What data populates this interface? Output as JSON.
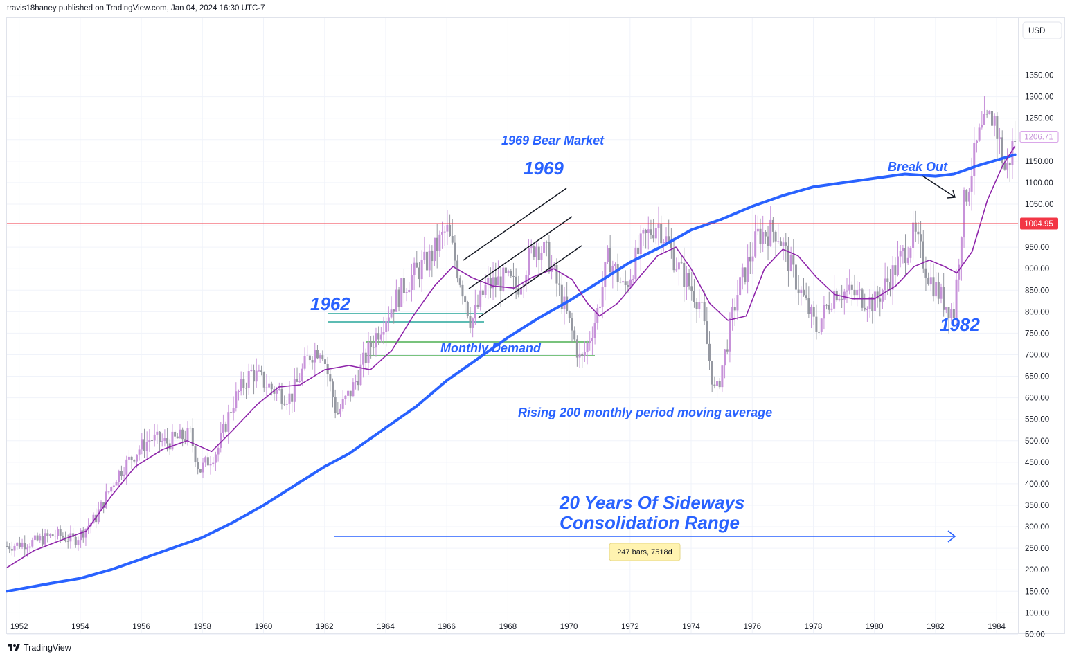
{
  "header": {
    "byline": "travis18haney published on TradingView.com, Jan 04, 2024 16:30 UTC-7"
  },
  "footer": {
    "brand": "TradingView"
  },
  "currency_button": "USD",
  "last_price_label": "1206.71",
  "level_label": "1004.95",
  "annotations": {
    "bear_market": "1969 Bear Market",
    "y1969": "1969",
    "y1962": "1962",
    "monthly_demand": "Monthly Demand",
    "rising_ma": "Rising 200 monthly period moving average",
    "break_out": "Break Out",
    "y1982": "1982",
    "sideways_line1": "20 Years Of Sideways",
    "sideways_line2": "Consolidation Range",
    "measure": "247 bars, 7518d"
  },
  "colors": {
    "candle": "#c792d9",
    "ma_short": "#8e24aa",
    "ma_long": "#2962ff",
    "annotation": "#2962ff",
    "level_line": "#f23645",
    "demand_teal": "#26a69a",
    "demand_green": "#4caf50"
  },
  "chart_data": {
    "type": "candlestick",
    "title": "",
    "xlabel": "",
    "ylabel": "",
    "x_ticks": [
      "1952",
      "1954",
      "1956",
      "1958",
      "1960",
      "1962",
      "1964",
      "1966",
      "1968",
      "1970",
      "1972",
      "1974",
      "1976",
      "1978",
      "1980",
      "1982",
      "1984"
    ],
    "y_ticks": [
      "50.00",
      "100.00",
      "150.00",
      "200.00",
      "250.00",
      "300.00",
      "350.00",
      "400.00",
      "450.00",
      "500.00",
      "550.00",
      "600.00",
      "650.00",
      "700.00",
      "750.00",
      "800.00",
      "850.00",
      "900.00",
      "950.00",
      "1000.00",
      "1050.00",
      "1100.00",
      "1150.00",
      "1200.00",
      "1250.00",
      "1300.00",
      "1350.00"
    ],
    "xlim": [
      1951.6,
      1984.7
    ],
    "ylim": [
      35,
      1380
    ],
    "price_path": [
      [
        1951.6,
        255
      ],
      [
        1952.5,
        265
      ],
      [
        1953.2,
        282
      ],
      [
        1953.8,
        268
      ],
      [
        1954.5,
        320
      ],
      [
        1955.2,
        420
      ],
      [
        1955.9,
        480
      ],
      [
        1956.3,
        505
      ],
      [
        1956.8,
        495
      ],
      [
        1957.6,
        515
      ],
      [
        1957.9,
        430
      ],
      [
        1958.5,
        480
      ],
      [
        1959.0,
        590
      ],
      [
        1959.6,
        660
      ],
      [
        1960.3,
        620
      ],
      [
        1960.9,
        600
      ],
      [
        1961.5,
        700
      ],
      [
        1961.9,
        720
      ],
      [
        1962.4,
        560
      ],
      [
        1962.9,
        620
      ],
      [
        1963.5,
        720
      ],
      [
        1964.0,
        790
      ],
      [
        1964.7,
        870
      ],
      [
        1965.4,
        920
      ],
      [
        1966.0,
        990
      ],
      [
        1966.5,
        860
      ],
      [
        1966.8,
        775
      ],
      [
        1967.3,
        860
      ],
      [
        1967.9,
        875
      ],
      [
        1968.3,
        855
      ],
      [
        1968.9,
        960
      ],
      [
        1969.3,
        930
      ],
      [
        1969.9,
        800
      ],
      [
        1970.4,
        680
      ],
      [
        1970.9,
        790
      ],
      [
        1971.3,
        930
      ],
      [
        1971.8,
        850
      ],
      [
        1972.4,
        960
      ],
      [
        1972.9,
        1010
      ],
      [
        1973.6,
        900
      ],
      [
        1974.3,
        820
      ],
      [
        1974.8,
        600
      ],
      [
        1975.5,
        840
      ],
      [
        1976.2,
        980
      ],
      [
        1976.8,
        990
      ],
      [
        1977.5,
        860
      ],
      [
        1978.1,
        760
      ],
      [
        1978.7,
        850
      ],
      [
        1979.4,
        840
      ],
      [
        1980.0,
        820
      ],
      [
        1980.6,
        890
      ],
      [
        1981.3,
        980
      ],
      [
        1981.8,
        880
      ],
      [
        1982.3,
        820
      ],
      [
        1982.6,
        800
      ],
      [
        1982.9,
        1040
      ],
      [
        1983.4,
        1200
      ],
      [
        1983.9,
        1260
      ],
      [
        1984.3,
        1120
      ],
      [
        1984.6,
        1206.71
      ]
    ],
    "series": [
      {
        "name": "",
        "points": [
          [
            1951.6,
            205
          ],
          [
            1952.5,
            245
          ],
          [
            1953.5,
            272
          ],
          [
            1954.2,
            290
          ],
          [
            1955.0,
            370
          ],
          [
            1955.8,
            440
          ],
          [
            1956.7,
            480
          ],
          [
            1957.5,
            500
          ],
          [
            1958.3,
            475
          ],
          [
            1959.0,
            525
          ],
          [
            1959.8,
            585
          ],
          [
            1960.5,
            625
          ],
          [
            1961.2,
            630
          ],
          [
            1962.0,
            665
          ],
          [
            1962.8,
            675
          ],
          [
            1963.5,
            665
          ],
          [
            1964.2,
            710
          ],
          [
            1964.9,
            790
          ],
          [
            1965.6,
            860
          ],
          [
            1966.2,
            905
          ],
          [
            1966.8,
            880
          ],
          [
            1967.5,
            860
          ],
          [
            1968.2,
            855
          ],
          [
            1968.8,
            880
          ],
          [
            1969.5,
            900
          ],
          [
            1970.1,
            875
          ],
          [
            1970.6,
            820
          ],
          [
            1971.0,
            790
          ],
          [
            1971.6,
            820
          ],
          [
            1972.3,
            880
          ],
          [
            1972.9,
            930
          ],
          [
            1973.5,
            950
          ],
          [
            1974.0,
            900
          ],
          [
            1974.6,
            820
          ],
          [
            1975.2,
            780
          ],
          [
            1975.8,
            790
          ],
          [
            1976.4,
            900
          ],
          [
            1977.0,
            945
          ],
          [
            1977.5,
            930
          ],
          [
            1978.1,
            880
          ],
          [
            1978.7,
            840
          ],
          [
            1979.3,
            830
          ],
          [
            1980.0,
            830
          ],
          [
            1980.7,
            860
          ],
          [
            1981.3,
            905
          ],
          [
            1981.8,
            920
          ],
          [
            1982.3,
            905
          ],
          [
            1982.7,
            890
          ],
          [
            1983.2,
            940
          ],
          [
            1983.7,
            1060
          ],
          [
            1984.2,
            1140
          ],
          [
            1984.6,
            1185
          ]
        ]
      },
      {
        "name": "",
        "points": [
          [
            1951.6,
            150
          ],
          [
            1953.0,
            168
          ],
          [
            1954.0,
            180
          ],
          [
            1955.0,
            200
          ],
          [
            1956.0,
            225
          ],
          [
            1957.0,
            250
          ],
          [
            1958.0,
            275
          ],
          [
            1959.0,
            310
          ],
          [
            1960.0,
            350
          ],
          [
            1961.0,
            395
          ],
          [
            1962.0,
            440
          ],
          [
            1962.8,
            470
          ],
          [
            1964.0,
            530
          ],
          [
            1965.0,
            580
          ],
          [
            1966.0,
            640
          ],
          [
            1967.0,
            690
          ],
          [
            1968.0,
            740
          ],
          [
            1969.0,
            785
          ],
          [
            1970.0,
            825
          ],
          [
            1971.0,
            870
          ],
          [
            1972.0,
            915
          ],
          [
            1973.0,
            950
          ],
          [
            1974.0,
            990
          ],
          [
            1975.0,
            1015
          ],
          [
            1976.0,
            1045
          ],
          [
            1977.0,
            1070
          ],
          [
            1978.0,
            1090
          ],
          [
            1979.0,
            1100
          ],
          [
            1980.0,
            1110
          ],
          [
            1981.0,
            1120
          ],
          [
            1982.0,
            1115
          ],
          [
            1982.6,
            1120
          ],
          [
            1983.4,
            1140
          ],
          [
            1984.6,
            1165
          ]
        ]
      }
    ],
    "horizontal_level": 1004.95,
    "last_price": 1206.71
  }
}
